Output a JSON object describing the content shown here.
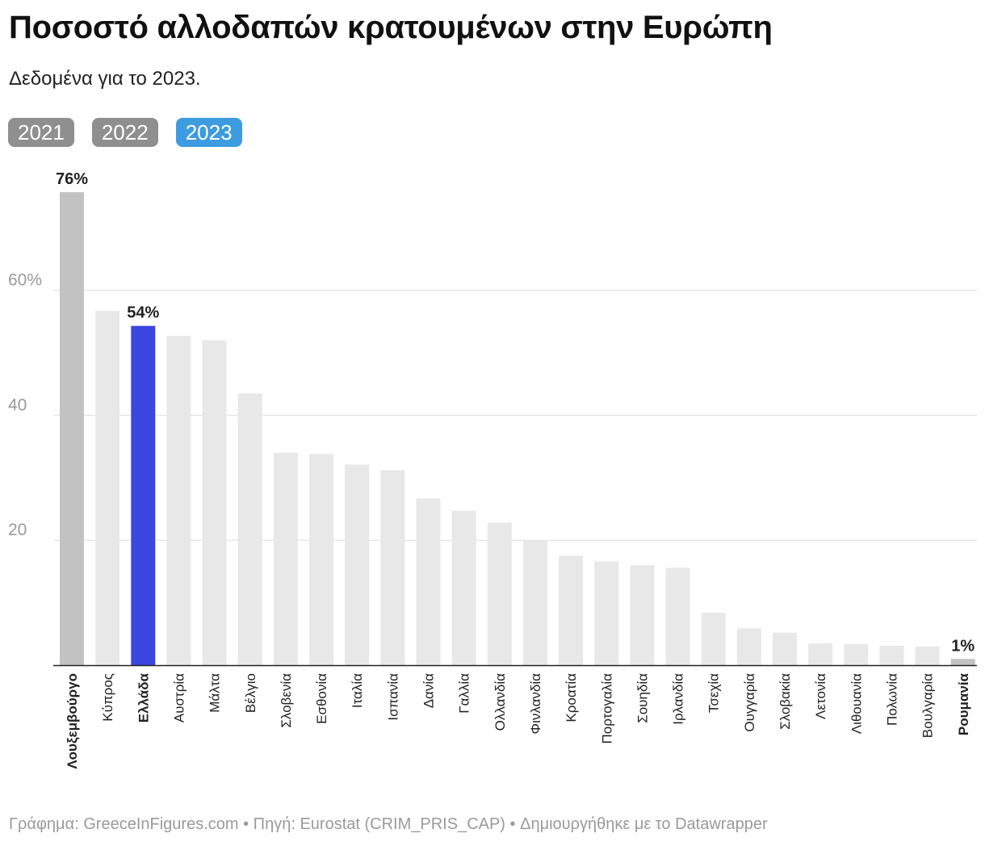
{
  "title": "Ποσοστό αλλοδαπών κρατουμένων στην Ευρώπη",
  "subtitle": "Δεδομένα για το 2023.",
  "tabs": [
    {
      "label": "2021",
      "active": false
    },
    {
      "label": "2022",
      "active": false
    },
    {
      "label": "2023",
      "active": true
    }
  ],
  "footer": "Γράφημα: GreeceInFigures.com • Πηγή: Eurostat (CRIM_PRIS_CAP) • Δημιουργήθηκε με το Datawrapper",
  "colors": {
    "highlight": "#3a46e0",
    "top": "#c2c2c2",
    "default": "#e8e8e8",
    "bottom": "#c2c2c2",
    "tab_active": "#3d9be0",
    "tab_inactive": "#8f8f8f"
  },
  "chart_data": {
    "type": "bar",
    "categories": [
      "Λουξεμβούργο",
      "Κύπρος",
      "Ελλάδα",
      "Αυστρία",
      "Μάλτα",
      "Βέλγιο",
      "Σλοβενία",
      "Εσθονία",
      "Ιταλία",
      "Ισπανία",
      "Δανία",
      "Γαλλία",
      "Ολλανδία",
      "Φινλανδία",
      "Κροατία",
      "Πορτογαλία",
      "Σουηδία",
      "Ιρλανδία",
      "Τσεχία",
      "Ουγγαρία",
      "Σλοβακία",
      "Λετονία",
      "Λιθουανία",
      "Πολωνία",
      "Βουλγαρία",
      "Ρουμανία"
    ],
    "values": [
      75.7,
      56.7,
      54.3,
      52.7,
      52.0,
      43.5,
      34.0,
      33.8,
      32.1,
      31.2,
      26.7,
      24.7,
      22.8,
      20.0,
      17.5,
      16.6,
      16.0,
      15.6,
      8.4,
      5.9,
      5.2,
      3.5,
      3.4,
      3.1,
      3.0,
      1.0
    ],
    "bold_categories": [
      "Λουξεμβούργο",
      "Ελλάδα",
      "Ρουμανία"
    ],
    "value_labels": [
      {
        "index": 0,
        "text": "76%"
      },
      {
        "index": 2,
        "text": "54%"
      },
      {
        "index": 25,
        "text": "1%"
      }
    ],
    "y_ticks": [
      {
        "value": 20,
        "label": "20"
      },
      {
        "value": 40,
        "label": "40"
      },
      {
        "value": 60,
        "label": "60%"
      }
    ],
    "ylim": [
      0,
      80
    ],
    "grid": true,
    "title": "Ποσοστό αλλοδαπών κρατουμένων στην Ευρώπη",
    "xlabel": "",
    "ylabel": ""
  }
}
